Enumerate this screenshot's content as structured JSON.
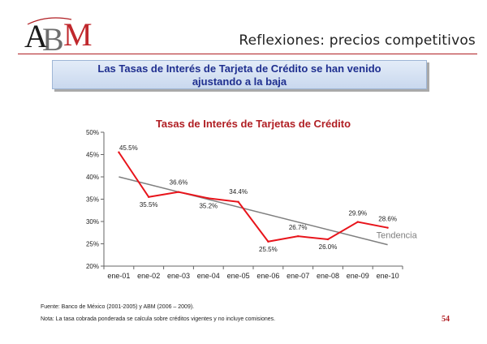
{
  "header": {
    "logo_text": "ABM",
    "title": "Reflexiones: precios competitivos"
  },
  "banner": {
    "line1": "Las Tasas de Interés de Tarjeta de Crédito  se han venido",
    "line2": "ajustando a la baja"
  },
  "chart_data": {
    "type": "line",
    "title": "Tasas de Interés de Tarjetas de Crédito",
    "categories": [
      "ene-01",
      "ene-02",
      "ene-03",
      "ene-04",
      "ene-05",
      "ene-06",
      "ene-07",
      "ene-08",
      "ene-09",
      "ene-10"
    ],
    "series": [
      {
        "values": [
          45.5,
          35.5,
          36.6,
          35.2,
          34.4,
          25.5,
          26.7,
          26.0,
          29.9,
          28.6
        ],
        "labels": [
          "45.5%",
          "35.5%",
          "36.6%",
          "35.2%",
          "34.4%",
          "25.5%",
          "26.7%",
          "26.0%",
          "29.9%",
          "28.6%"
        ],
        "color": "#e8141b"
      }
    ],
    "trend": {
      "name": "Tendencia",
      "start": 40.0,
      "end": 24.8,
      "color": "#7f7f7f"
    },
    "ylim": [
      20,
      50
    ],
    "yticks": [
      "20%",
      "25%",
      "30%",
      "35%",
      "40%",
      "45%",
      "50%"
    ],
    "title_color": "#b01e23",
    "grid": false
  },
  "footnotes": [
    "Fuente: Banco de México (2001-2005) y ABM (2006 – 2009).",
    "Nota: La tasa cobrada ponderada se calcula sobre créditos vigentes y no incluye comisiones."
  ],
  "page_number": "54"
}
